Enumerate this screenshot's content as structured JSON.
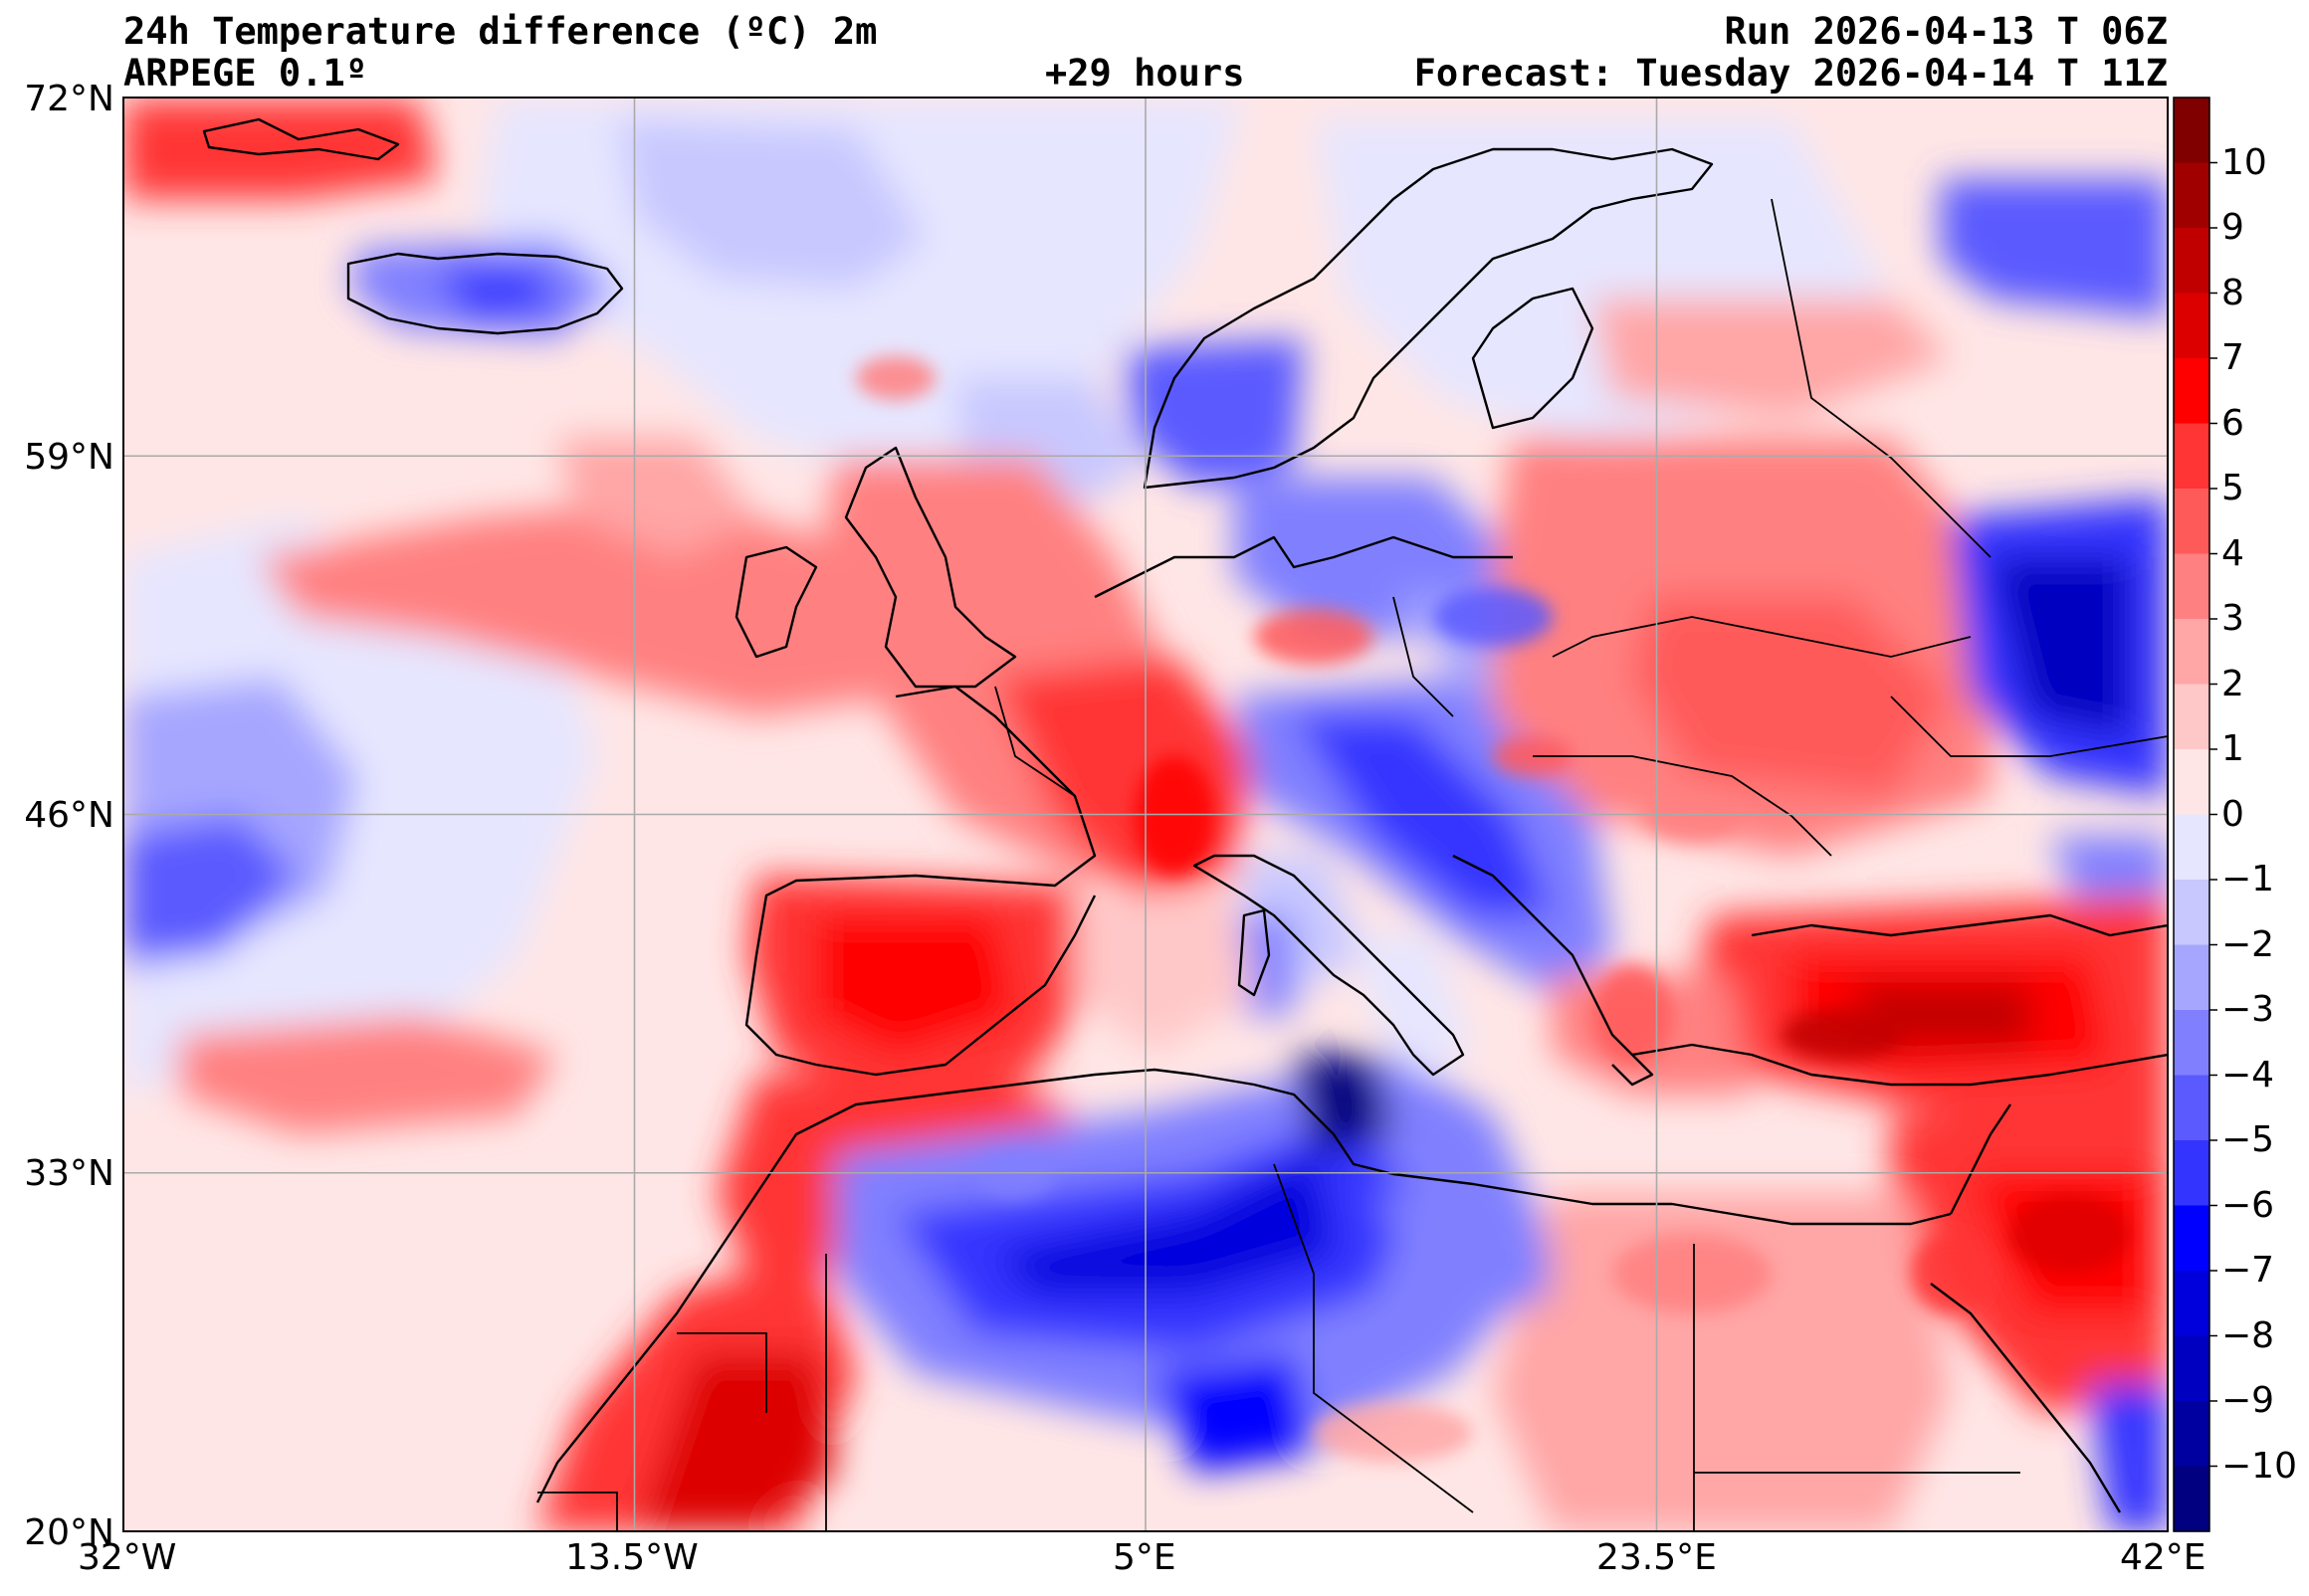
{
  "header": {
    "title": "24h Temperature difference (ºC) 2m",
    "model": "ARPEGE 0.1º",
    "lead": "+29 hours",
    "run": "Run 2026-04-13 T 06Z",
    "forecast": "Forecast: Tuesday 2026-04-14 T 11Z"
  },
  "axes": {
    "lat_labels": [
      "72°N",
      "59°N",
      "46°N",
      "33°N",
      "20°N"
    ],
    "lon_labels": [
      "32°W",
      "13.5°W",
      "5°E",
      "23.5°E",
      "42°E"
    ],
    "lat_range": [
      20,
      72
    ],
    "lon_range": [
      -32,
      42
    ]
  },
  "colorbar": {
    "labels": [
      "10",
      "9",
      "8",
      "7",
      "6",
      "5",
      "4",
      "3",
      "2",
      "1",
      "0",
      "−1",
      "−2",
      "−3",
      "−4",
      "−5",
      "−6",
      "−7",
      "−8",
      "−9",
      "−10"
    ],
    "colors": [
      "#800000",
      "#a00000",
      "#c00000",
      "#dd0000",
      "#ff0000",
      "#ff3434",
      "#ff5a5a",
      "#ff8080",
      "#ffa6a6",
      "#ffc8c8",
      "#ffe6e6",
      "#e6e6ff",
      "#c8c8ff",
      "#a6a6ff",
      "#8080ff",
      "#5a5aff",
      "#3434ff",
      "#0000ff",
      "#0000dd",
      "#0000c0",
      "#0000a0",
      "#000080"
    ]
  }
}
